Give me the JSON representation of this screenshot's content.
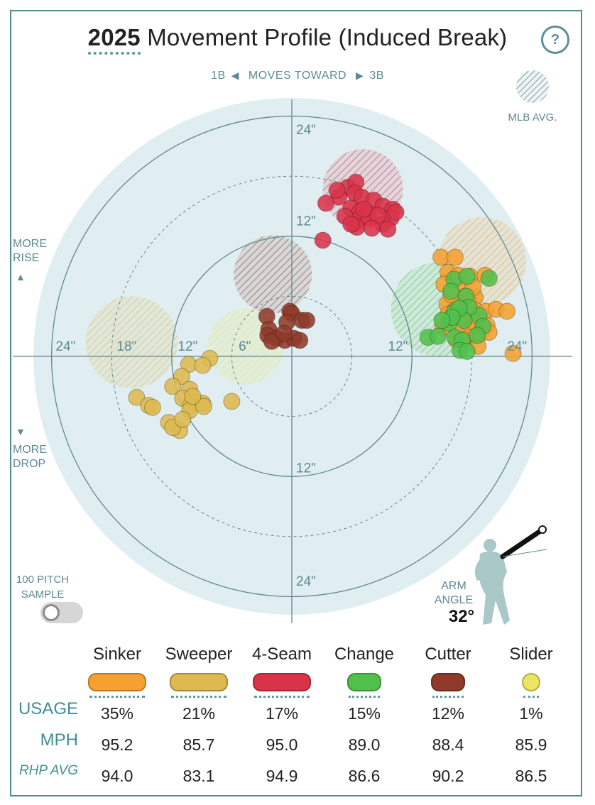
{
  "title": {
    "year": "2025",
    "text": "Movement Profile (Induced Break)",
    "help": "?"
  },
  "direction": {
    "left": "1B",
    "middle": "MOVES TOWARD",
    "right": "3B"
  },
  "mlb_avg_label": "MLB AVG.",
  "more_rise": [
    "MORE",
    "RISE"
  ],
  "more_drop": [
    "MORE",
    "DROP"
  ],
  "sample": {
    "label_line1": "100 PITCH",
    "label_line2": "SAMPLE",
    "on": false
  },
  "arm_angle": {
    "label_line1": "ARM",
    "label_line2": "ANGLE",
    "value": "32°",
    "degrees": 32
  },
  "chart_data": {
    "type": "scatter",
    "title": "2025 Movement Profile (Induced Break)",
    "x_unit": "inches horizontal break (negative = toward 1B, positive = toward 3B)",
    "y_unit": "inches induced vertical break",
    "range": 24,
    "ring_labels": [
      "24\"",
      "18\"",
      "12\"",
      "6\"",
      "12\"",
      "24\""
    ],
    "axis_labels": {
      "top_outer": "24\"",
      "top_inner": "12\"",
      "bottom_inner": "12\"",
      "bottom_outer": "24\"",
      "left_outer": "24\"",
      "left_18": "18\"",
      "left_12": "12\"",
      "left_6": "6\"",
      "right_12": "12\"",
      "right_outer": "24\""
    },
    "series": [
      {
        "name": "Sinker",
        "color": "#f5a030",
        "mlb_avg": {
          "x": 19,
          "y": 9.5,
          "r": 4.4
        },
        "points": [
          [
            14.9,
            9.9
          ],
          [
            16.3,
            9.9
          ],
          [
            15.6,
            8.4
          ],
          [
            17.8,
            8.0
          ],
          [
            19.3,
            8.1
          ],
          [
            15.2,
            7.2
          ],
          [
            16.8,
            6.7
          ],
          [
            17.4,
            6.0
          ],
          [
            18.3,
            5.9
          ],
          [
            16.2,
            5.8
          ],
          [
            15.5,
            5.2
          ],
          [
            17.4,
            4.8
          ],
          [
            18.3,
            4.6
          ],
          [
            19.4,
            4.5
          ],
          [
            20.4,
            4.7
          ],
          [
            18.1,
            3.5
          ],
          [
            19.5,
            3.1
          ],
          [
            16.3,
            4.6
          ],
          [
            16.9,
            3.9
          ],
          [
            17.8,
            2.6
          ],
          [
            21.5,
            4.5
          ],
          [
            17.7,
            1.9
          ],
          [
            18.6,
            1.0
          ],
          [
            15.1,
            2.9
          ],
          [
            17.1,
            1.7
          ],
          [
            18.9,
            2.3
          ],
          [
            22.1,
            0.3
          ],
          [
            16.6,
            3.4
          ],
          [
            19.7,
            2.4
          ],
          [
            15.6,
            4.2
          ],
          [
            18.1,
            6.9
          ],
          [
            16.6,
            8.1
          ],
          [
            17.6,
            5.5
          ],
          [
            15.9,
            6.2
          ],
          [
            16.4,
            1.7
          ]
        ]
      },
      {
        "name": "Sweeper",
        "color": "#ddb94f",
        "mlb_avg": {
          "x": -16,
          "y": 1.4,
          "r": 4.6
        },
        "points": [
          [
            -10.3,
            -0.8
          ],
          [
            -8.2,
            -0.2
          ],
          [
            -8.9,
            -0.9
          ],
          [
            -11.0,
            -2.0
          ],
          [
            -11.9,
            -3.0
          ],
          [
            -10.2,
            -3.3
          ],
          [
            -10.9,
            -4.2
          ],
          [
            -9.5,
            -4.6
          ],
          [
            -10.1,
            -4.9
          ],
          [
            -8.9,
            -4.7
          ],
          [
            -6.0,
            -4.5
          ],
          [
            -15.5,
            -4.1
          ],
          [
            -14.3,
            -4.9
          ],
          [
            -12.3,
            -6.6
          ],
          [
            -10.2,
            -5.4
          ],
          [
            -8.8,
            -5.0
          ],
          [
            -11.2,
            -7.4
          ],
          [
            -11.9,
            -7.1
          ],
          [
            -10.9,
            -6.3
          ],
          [
            -13.9,
            -5.1
          ],
          [
            -9.9,
            -4.0
          ]
        ]
      },
      {
        "name": "4-Seam",
        "color": "#d9334a",
        "mlb_avg": {
          "x": 7.1,
          "y": 16.7,
          "r": 4.0
        },
        "points": [
          [
            5.6,
            16.9
          ],
          [
            6.4,
            17.4
          ],
          [
            6.3,
            16.3
          ],
          [
            7.0,
            15.9
          ],
          [
            8.2,
            15.6
          ],
          [
            9.1,
            15.0
          ],
          [
            5.9,
            14.8
          ],
          [
            6.8,
            14.5
          ],
          [
            7.6,
            14.3
          ],
          [
            4.7,
            15.9
          ],
          [
            10.1,
            14.7
          ],
          [
            3.4,
            15.3
          ],
          [
            6.2,
            13.2
          ],
          [
            9.9,
            13.8
          ],
          [
            6.7,
            13.7
          ],
          [
            10.4,
            14.4
          ],
          [
            9.1,
            13.2
          ],
          [
            7.7,
            13.8
          ],
          [
            3.1,
            11.6
          ],
          [
            6.5,
            12.9
          ],
          [
            8.6,
            14.1
          ],
          [
            9.6,
            12.7
          ],
          [
            5.3,
            14.0
          ],
          [
            5.9,
            13.2
          ],
          [
            7.2,
            14.7
          ],
          [
            4.5,
            16.6
          ],
          [
            8.0,
            12.8
          ]
        ]
      },
      {
        "name": "Change",
        "color": "#52c04c",
        "mlb_avg": {
          "x": 14.6,
          "y": 4.7,
          "r": 4.7
        },
        "points": [
          [
            16.2,
            7.7
          ],
          [
            17.5,
            8.0
          ],
          [
            19.7,
            7.8
          ],
          [
            15.9,
            6.5
          ],
          [
            17.4,
            6.0
          ],
          [
            18.7,
            4.1
          ],
          [
            17.7,
            4.9
          ],
          [
            16.2,
            4.4
          ],
          [
            15.7,
            3.3
          ],
          [
            17.2,
            3.6
          ],
          [
            16.7,
            4.8
          ],
          [
            19.1,
            3.0
          ],
          [
            16.0,
            3.9
          ],
          [
            13.6,
            1.9
          ],
          [
            14.6,
            2.0
          ],
          [
            16.3,
            1.9
          ],
          [
            18.5,
            2.1
          ],
          [
            17.0,
            1.6
          ],
          [
            16.8,
            0.6
          ],
          [
            17.5,
            0.5
          ],
          [
            15.0,
            3.6
          ]
        ]
      },
      {
        "name": "Cutter",
        "color": "#8f3a2a",
        "mlb_avg": {
          "x": -1.9,
          "y": 8.2,
          "r": 3.9
        },
        "points": [
          [
            -2.5,
            4.0
          ],
          [
            -0.2,
            4.5
          ],
          [
            0.0,
            4.3
          ],
          [
            1.0,
            3.6
          ],
          [
            1.5,
            3.6
          ],
          [
            -0.5,
            3.4
          ],
          [
            -2.3,
            2.7
          ],
          [
            -2.4,
            2.1
          ],
          [
            -1.5,
            1.8
          ],
          [
            -0.7,
            1.6
          ],
          [
            0.2,
            1.8
          ],
          [
            0.8,
            1.6
          ],
          [
            -2.0,
            1.5
          ],
          [
            -0.8,
            2.3
          ]
        ]
      },
      {
        "name": "Slider",
        "color": "#ede561",
        "mlb_avg": {
          "x": -4.6,
          "y": 1.0,
          "r": 3.8
        },
        "points": []
      }
    ]
  },
  "table": {
    "usage_label": "USAGE",
    "mph_label": "MPH",
    "rhp_label": "RHP AVG",
    "pitches": [
      {
        "name": "Sinker",
        "color": "#f5a030",
        "usage": "35%",
        "mph": "95.2",
        "rhp": "94.0"
      },
      {
        "name": "Sweeper",
        "color": "#ddb94f",
        "usage": "21%",
        "mph": "85.7",
        "rhp": "83.1"
      },
      {
        "name": "4-Seam",
        "color": "#d9334a",
        "usage": "17%",
        "mph": "95.0",
        "rhp": "94.9"
      },
      {
        "name": "Change",
        "color": "#52c04c",
        "usage": "15%",
        "mph": "89.0",
        "rhp": "86.6"
      },
      {
        "name": "Cutter",
        "color": "#8f3a2a",
        "usage": "12%",
        "mph": "88.4",
        "rhp": "90.2"
      },
      {
        "name": "Slider",
        "color": "#ede561",
        "usage": "1%",
        "mph": "85.9",
        "rhp": "86.5"
      }
    ]
  }
}
